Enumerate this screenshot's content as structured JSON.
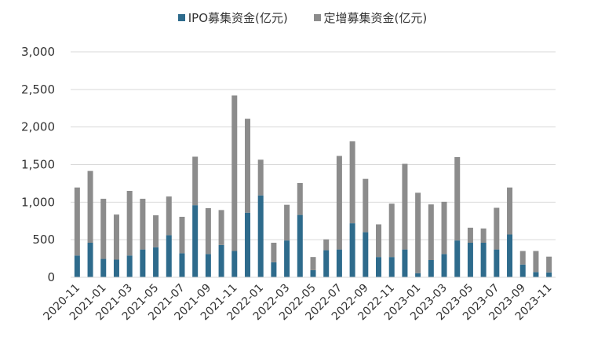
{
  "chart_data": {
    "type": "bar",
    "stacked": true,
    "ylim": [
      0,
      3000
    ],
    "yticks": [
      "0",
      "500",
      "1,000",
      "1,500",
      "2,000",
      "2,500",
      "3,000"
    ],
    "ytick_values": [
      0,
      500,
      1000,
      1500,
      2000,
      2500,
      3000
    ],
    "grid": true,
    "legend_position": "top-center",
    "categories": [
      "2020-11",
      "2020-12",
      "2021-01",
      "2021-02",
      "2021-03",
      "2021-04",
      "2021-05",
      "2021-06",
      "2021-07",
      "2021-08",
      "2021-09",
      "2021-10",
      "2021-11",
      "2021-12",
      "2022-01",
      "2022-02",
      "2022-03",
      "2022-04",
      "2022-05",
      "2022-06",
      "2022-07",
      "2022-08",
      "2022-09",
      "2022-10",
      "2022-11",
      "2022-12",
      "2023-01",
      "2023-02",
      "2023-03",
      "2023-04",
      "2023-05",
      "2023-06",
      "2023-07",
      "2023-08",
      "2023-09",
      "2023-10",
      "2023-11"
    ],
    "xtick_labels": [
      "2020-11",
      "2021-01",
      "2021-03",
      "2021-05",
      "2021-07",
      "2021-09",
      "2021-11",
      "2022-01",
      "2022-03",
      "2022-05",
      "2022-07",
      "2022-09",
      "2022-11",
      "2023-01",
      "2023-03",
      "2023-05",
      "2023-07",
      "2023-09",
      "2023-11"
    ],
    "series": [
      {
        "name": "IPO募集资金(亿元)",
        "color": "#2E6B8C",
        "values": [
          290,
          460,
          245,
          235,
          290,
          370,
          400,
          560,
          320,
          960,
          310,
          430,
          350,
          860,
          1090,
          200,
          490,
          830,
          95,
          360,
          370,
          720,
          600,
          270,
          270,
          370,
          55,
          230,
          310,
          490,
          460,
          460,
          370,
          570,
          170,
          70,
          65
        ]
      },
      {
        "name": "定增募集资金(亿元)",
        "color": "#8C8C8C",
        "values": [
          905,
          955,
          800,
          600,
          860,
          675,
          425,
          515,
          485,
          645,
          610,
          465,
          2070,
          1250,
          475,
          260,
          475,
          425,
          175,
          145,
          1245,
          1090,
          710,
          435,
          710,
          1140,
          1070,
          740,
          695,
          1110,
          200,
          190,
          555,
          625,
          180,
          280,
          210
        ]
      }
    ]
  }
}
